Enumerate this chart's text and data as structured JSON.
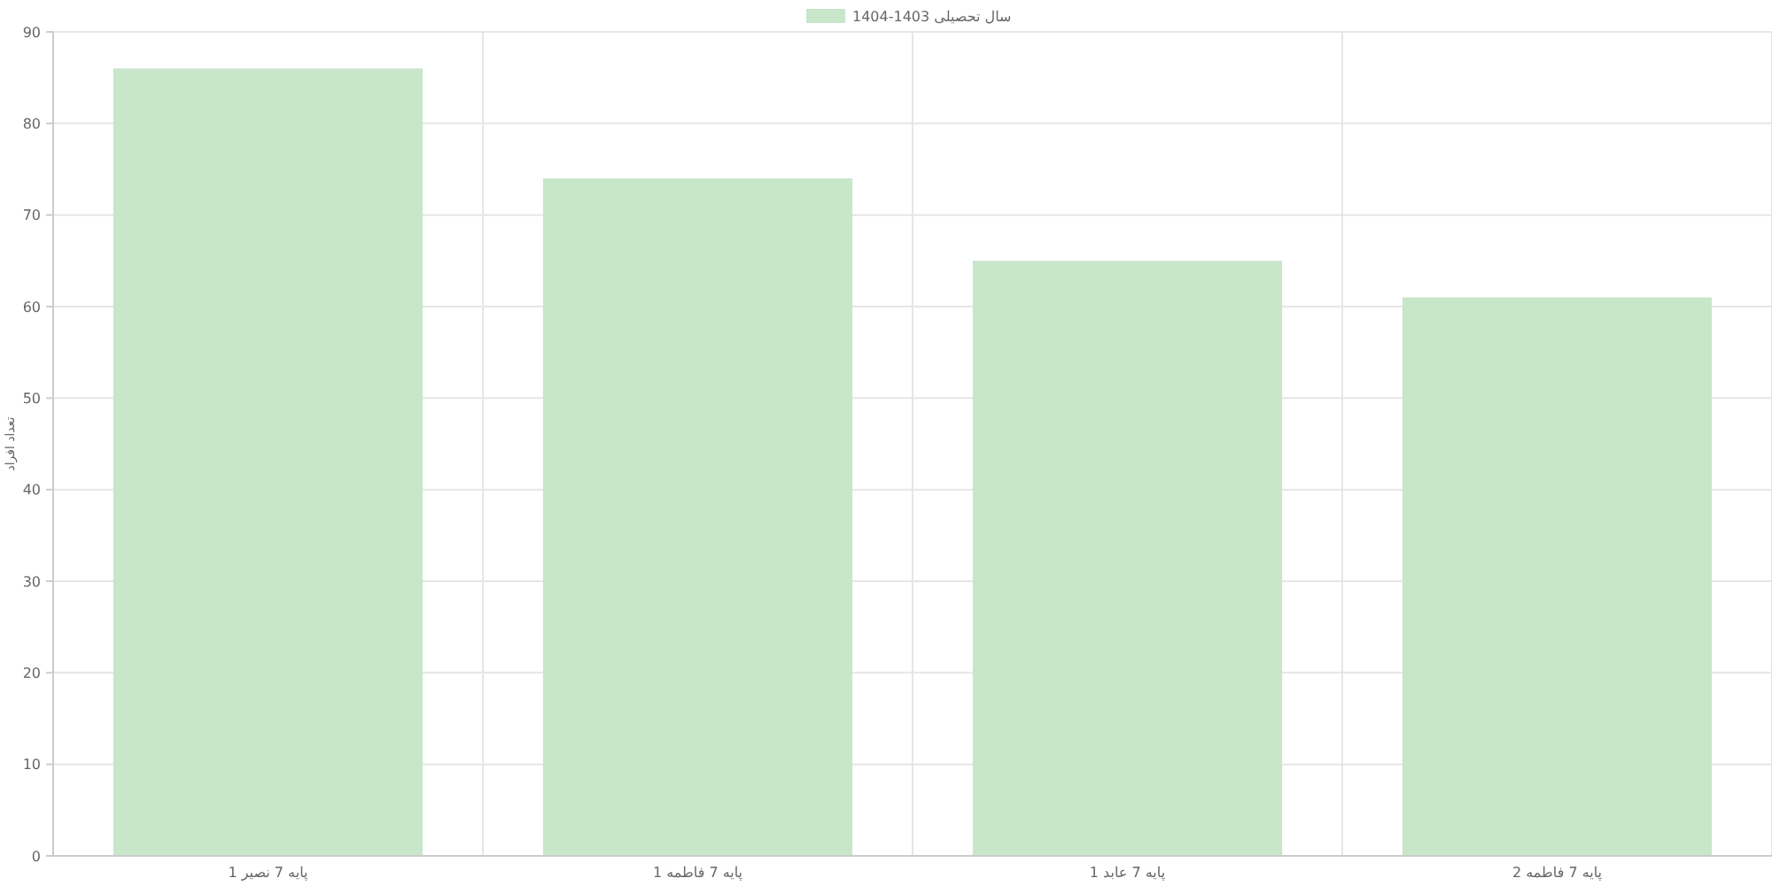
{
  "chart_data": {
    "type": "bar",
    "ylabel": "تعداد افراد",
    "categories": [
      "پایه 7 نصیر 1",
      "پایه 7 فاطمه 1",
      "پایه 7 عابد 1",
      "پایه 7 فاطمه 2"
    ],
    "series": [
      {
        "name": "سال تحصیلی 1403-1404",
        "color": "#c8e6c9",
        "values": [
          86,
          74,
          65,
          61
        ]
      }
    ],
    "ylim": [
      0,
      90
    ],
    "yticks": [
      0,
      10,
      20,
      30,
      40,
      50,
      60,
      70,
      80,
      90
    ],
    "grid": true,
    "legend": "top"
  }
}
